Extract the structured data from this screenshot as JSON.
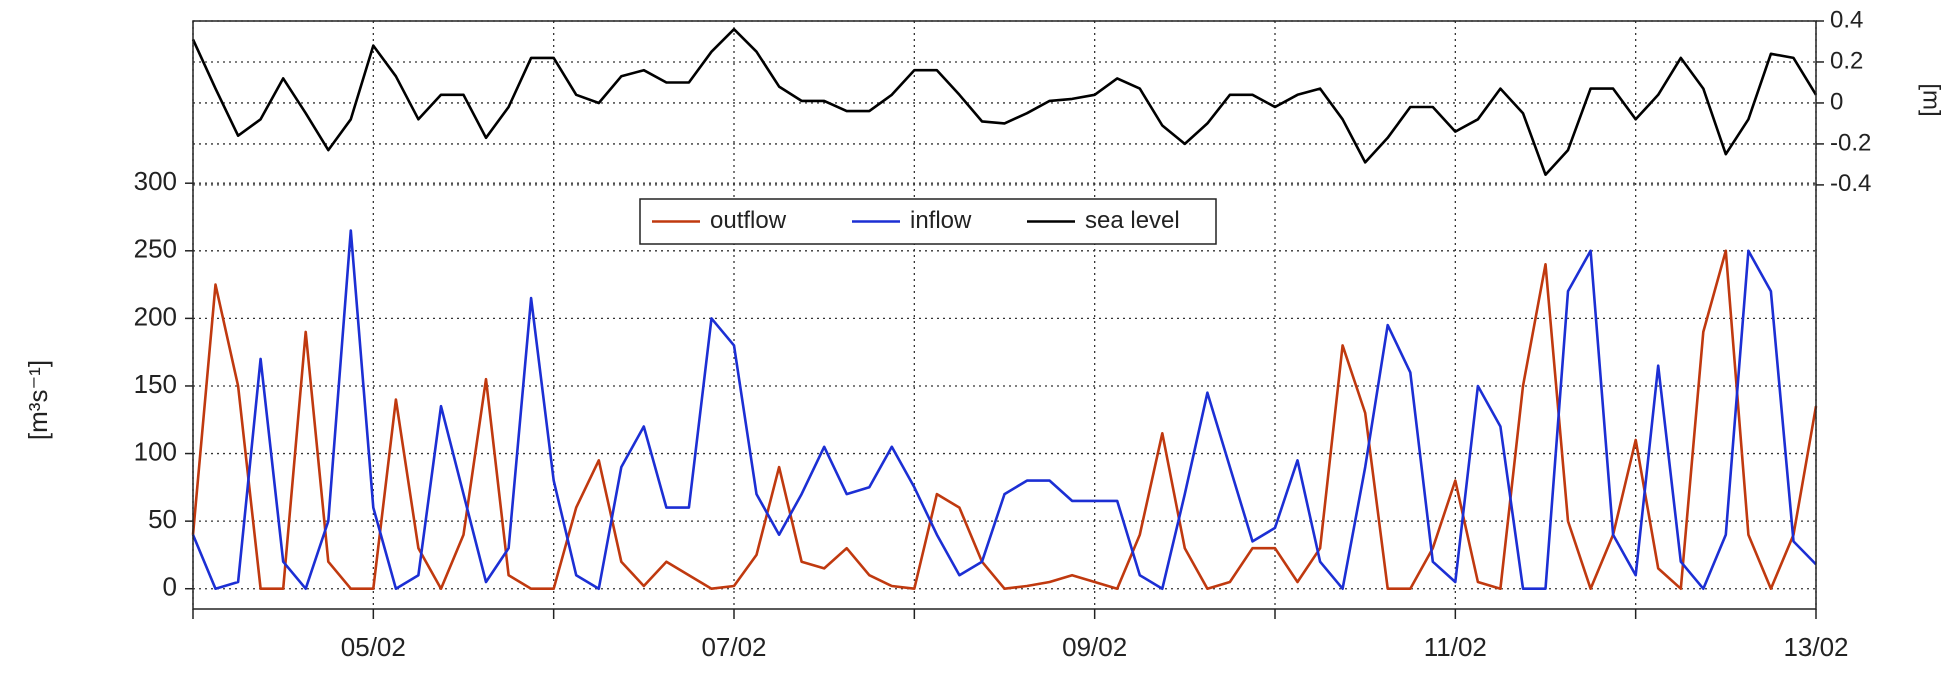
{
  "chart_data": {
    "type": "line",
    "y_label": "[m³s⁻¹]",
    "y2_label": "[m]",
    "x": [
      4,
      4.125,
      4.25,
      4.375,
      4.5,
      4.625,
      4.75,
      4.875,
      5,
      5.125,
      5.25,
      5.375,
      5.5,
      5.625,
      5.75,
      5.875,
      6,
      6.125,
      6.25,
      6.375,
      6.5,
      6.625,
      6.75,
      6.875,
      7,
      7.125,
      7.25,
      7.375,
      7.5,
      7.625,
      7.75,
      7.875,
      8,
      8.125,
      8.25,
      8.375,
      8.5,
      8.625,
      8.75,
      8.875,
      9,
      9.125,
      9.25,
      9.375,
      9.5,
      9.625,
      9.75,
      9.875,
      10,
      10.125,
      10.25,
      10.375,
      10.5,
      10.625,
      10.75,
      10.875,
      11,
      11.125,
      11.25,
      11.375,
      11.5,
      11.625,
      11.75,
      11.875,
      12,
      12.125,
      12.25,
      12.375,
      12.5,
      12.625,
      12.75,
      12.875,
      13
    ],
    "xlim": [
      4,
      13
    ],
    "xticks": [
      {
        "value": 5,
        "label": "05/02"
      },
      {
        "value": 7,
        "label": "07/02"
      },
      {
        "value": 9,
        "label": "09/02"
      },
      {
        "value": 11,
        "label": "11/02"
      },
      {
        "value": 13,
        "label": "13/02"
      }
    ],
    "xminorticks": [
      4,
      6,
      8,
      10,
      12
    ],
    "ylim": [
      -15,
      420
    ],
    "yticks": [
      0,
      50,
      100,
      150,
      200,
      250,
      300
    ],
    "y2lim": [
      -2.47,
      0.4
    ],
    "y2ticks": [
      -0.4,
      -0.2,
      0,
      0.2,
      0.4
    ],
    "grid": true,
    "legend": "top",
    "series": [
      {
        "name": "outflow",
        "color": "#c0390f",
        "values": [
          40,
          225,
          150,
          0,
          0,
          190,
          20,
          0,
          0,
          140,
          30,
          0,
          40,
          155,
          10,
          0,
          0,
          60,
          95,
          20,
          2,
          20,
          10,
          0,
          2,
          25,
          90,
          20,
          15,
          30,
          10,
          2,
          0,
          70,
          60,
          20,
          0,
          2,
          5,
          10,
          5,
          0,
          40,
          115,
          30,
          0,
          5,
          30,
          30,
          5,
          30,
          180,
          130,
          0,
          0,
          30,
          80,
          5,
          0,
          150,
          240,
          50,
          0,
          40,
          110,
          15,
          0,
          190,
          250,
          40,
          0,
          40,
          135
        ]
      },
      {
        "name": "inflow",
        "color": "#1c2fd4",
        "values": [
          40,
          0,
          5,
          170,
          20,
          0,
          50,
          265,
          60,
          0,
          10,
          135,
          70,
          5,
          30,
          215,
          80,
          10,
          0,
          90,
          120,
          60,
          60,
          200,
          180,
          70,
          40,
          70,
          105,
          70,
          75,
          105,
          75,
          40,
          10,
          20,
          70,
          80,
          80,
          65,
          65,
          65,
          10,
          0,
          70,
          145,
          90,
          35,
          45,
          95,
          20,
          0,
          90,
          195,
          160,
          20,
          5,
          150,
          120,
          0,
          0,
          220,
          250,
          40,
          10,
          165,
          20,
          0,
          40,
          250,
          220,
          35,
          18
        ]
      },
      {
        "name": "sea level",
        "color": "#000000",
        "axis": "y2",
        "values": [
          0.31,
          0.07,
          -0.16,
          -0.08,
          0.12,
          -0.05,
          -0.23,
          -0.08,
          0.28,
          0.13,
          -0.08,
          0.04,
          0.04,
          -0.17,
          -0.02,
          0.22,
          0.22,
          0.04,
          0,
          0.13,
          0.16,
          0.1,
          0.1,
          0.25,
          0.36,
          0.25,
          0.08,
          0.01,
          0.01,
          -0.04,
          -0.04,
          0.04,
          0.16,
          0.16,
          0.04,
          -0.09,
          -0.1,
          -0.05,
          0.01,
          0.02,
          0.04,
          0.12,
          0.07,
          -0.11,
          -0.2,
          -0.1,
          0.04,
          0.04,
          -0.02,
          0.04,
          0.07,
          -0.08,
          -0.29,
          -0.17,
          -0.02,
          -0.02,
          -0.14,
          -0.08,
          0.07,
          -0.05,
          -0.35,
          -0.23,
          0.07,
          0.07,
          -0.08,
          0.04,
          0.22,
          0.07,
          -0.25,
          -0.08,
          0.24,
          0.22,
          0.04
        ]
      }
    ]
  }
}
